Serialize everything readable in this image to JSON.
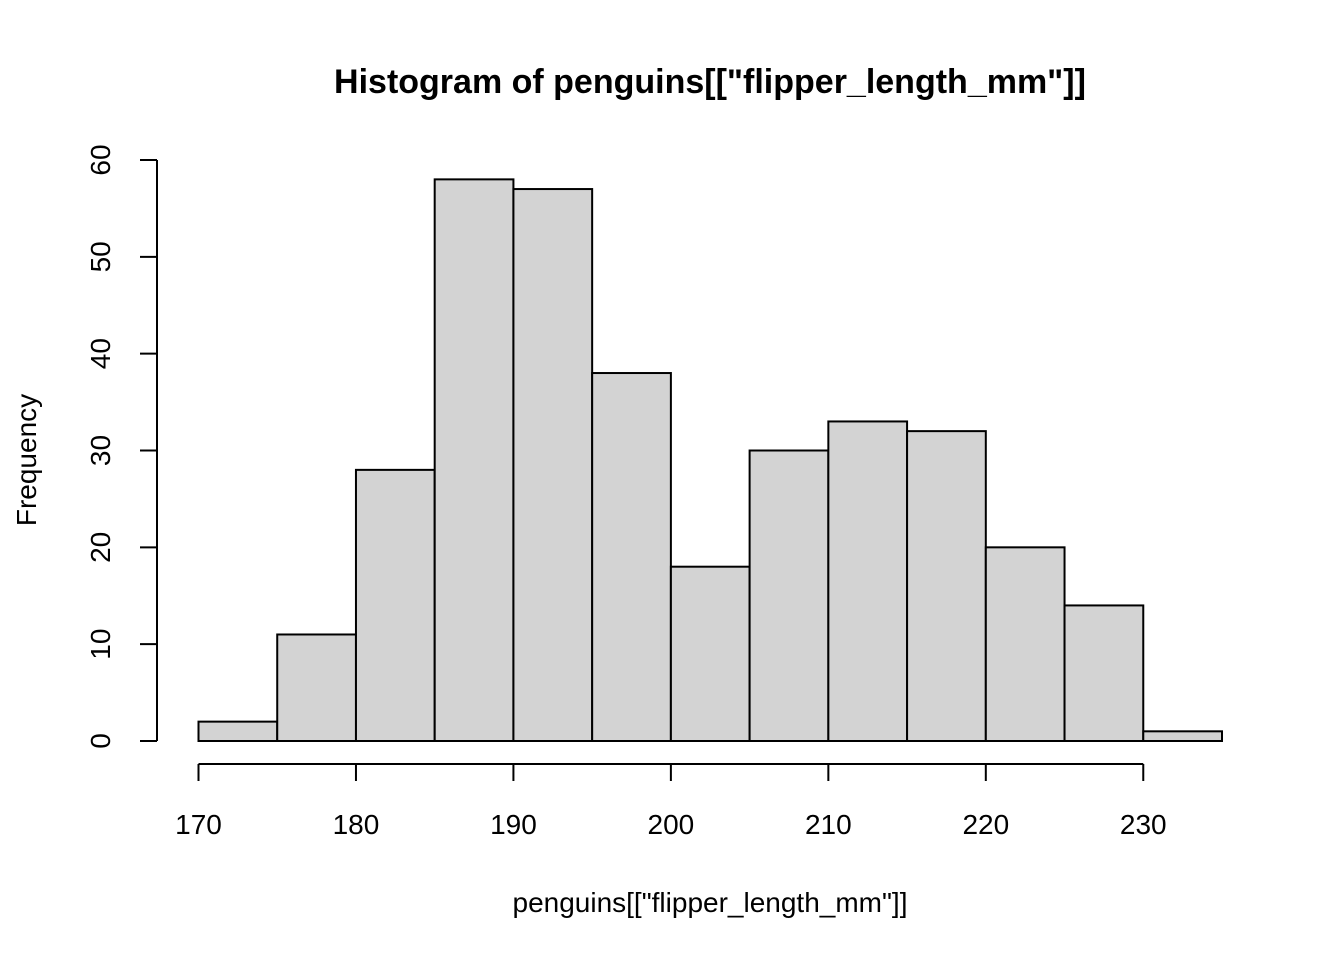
{
  "chart_data": {
    "type": "bar",
    "title": "Histogram of penguins[[\"flipper_length_mm\"]]",
    "xlabel": "penguins[[\"flipper_length_mm\"]]",
    "ylabel": "Frequency",
    "bins": [
      {
        "start": 170,
        "end": 175,
        "count": 2
      },
      {
        "start": 175,
        "end": 180,
        "count": 11
      },
      {
        "start": 180,
        "end": 185,
        "count": 28
      },
      {
        "start": 185,
        "end": 190,
        "count": 58
      },
      {
        "start": 190,
        "end": 195,
        "count": 57
      },
      {
        "start": 195,
        "end": 200,
        "count": 38
      },
      {
        "start": 200,
        "end": 205,
        "count": 18
      },
      {
        "start": 205,
        "end": 210,
        "count": 30
      },
      {
        "start": 210,
        "end": 215,
        "count": 33
      },
      {
        "start": 215,
        "end": 220,
        "count": 32
      },
      {
        "start": 220,
        "end": 225,
        "count": 20
      },
      {
        "start": 225,
        "end": 230,
        "count": 14
      },
      {
        "start": 230,
        "end": 235,
        "count": 1
      }
    ],
    "xlim": [
      170,
      235
    ],
    "ylim": [
      0,
      60
    ],
    "x_ticks": [
      170,
      180,
      190,
      200,
      210,
      220,
      230
    ],
    "y_ticks": [
      0,
      10,
      20,
      30,
      40,
      50,
      60
    ],
    "bar_fill": "#d3d3d3",
    "bar_stroke": "#000000",
    "grid": false,
    "legend": "none"
  }
}
